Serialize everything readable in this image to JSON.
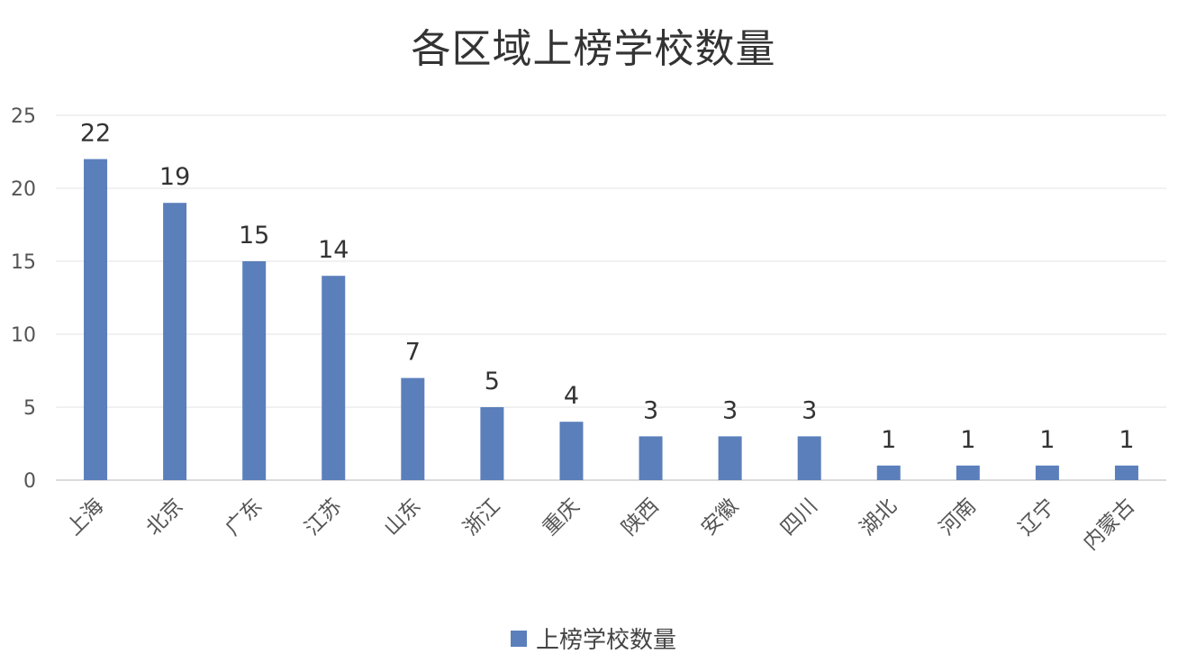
{
  "chart_data": {
    "type": "bar",
    "title": "各区域上榜学校数量",
    "categories": [
      "上海",
      "北京",
      "广东",
      "江苏",
      "山东",
      "浙江",
      "重庆",
      "陕西",
      "安徽",
      "四川",
      "湖北",
      "河南",
      "辽宁",
      "内蒙古"
    ],
    "series": [
      {
        "name": "上榜学校数量",
        "values": [
          22,
          19,
          15,
          14,
          7,
          5,
          4,
          3,
          3,
          3,
          1,
          1,
          1,
          1
        ],
        "color": "#5b7fbb"
      }
    ],
    "ylim": [
      0,
      25
    ],
    "yticks": [
      0,
      5,
      10,
      15,
      20,
      25
    ],
    "grid": true,
    "legend_position": "bottom",
    "data_labels": true
  }
}
